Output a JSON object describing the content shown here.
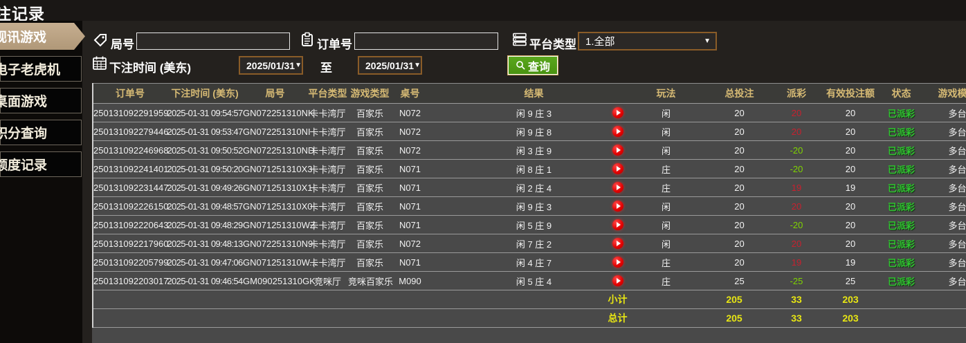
{
  "header": {
    "title": "投注记录"
  },
  "sidebar": {
    "items": [
      {
        "label": "视讯游戏",
        "active": true
      },
      {
        "label": "电子老虎机",
        "active": false
      },
      {
        "label": "桌面游戏",
        "active": false
      },
      {
        "label": "积分查询",
        "active": false
      },
      {
        "label": "额度记录",
        "active": false
      }
    ]
  },
  "filters": {
    "round_label": "局号",
    "round_value": "",
    "order_label": "订单号",
    "order_value": "",
    "platform_label": "平台类型",
    "platform_value": "1.全部",
    "bet_time_label": "下注时间 (美东)",
    "date_from": "2025/01/31",
    "to_label": "至",
    "date_to": "2025/01/31",
    "query_label": "查询"
  },
  "table": {
    "headers": [
      "订单号",
      "下注时间 (美东)",
      "局号",
      "平台类型",
      "游戏类型",
      "桌号",
      "结果",
      "",
      "玩法",
      "总投注",
      "派彩",
      "有效投注额",
      "状态",
      "游戏模式"
    ],
    "rows": [
      {
        "order_no": "250131092291959",
        "bet_time": "2025-01-31 09:54:57",
        "round_no": "GN072251310NK",
        "platform": "卡卡湾厅",
        "game_type": "百家乐",
        "table_no": "N072",
        "result": "闲 9 庄 3",
        "play": "闲",
        "total_bet": "20",
        "payout": "20",
        "valid_bet": "20",
        "status": "已派彩",
        "mode": "多台"
      },
      {
        "order_no": "250131092279446",
        "bet_time": "2025-01-31 09:53:47",
        "round_no": "GN072251310NI",
        "platform": "卡卡湾厅",
        "game_type": "百家乐",
        "table_no": "N072",
        "result": "闲 9 庄 8",
        "play": "闲",
        "total_bet": "20",
        "payout": "20",
        "valid_bet": "20",
        "status": "已派彩",
        "mode": "多台"
      },
      {
        "order_no": "250131092246968",
        "bet_time": "2025-01-31 09:50:52",
        "round_no": "GN072251310ND",
        "platform": "卡卡湾厅",
        "game_type": "百家乐",
        "table_no": "N072",
        "result": "闲 3 庄 9",
        "play": "闲",
        "total_bet": "20",
        "payout": "-20",
        "valid_bet": "20",
        "status": "已派彩",
        "mode": "多台"
      },
      {
        "order_no": "250131092241401",
        "bet_time": "2025-01-31 09:50:20",
        "round_no": "GN071251310X3",
        "platform": "卡卡湾厅",
        "game_type": "百家乐",
        "table_no": "N071",
        "result": "闲 8 庄 1",
        "play": "庄",
        "total_bet": "20",
        "payout": "-20",
        "valid_bet": "20",
        "status": "已派彩",
        "mode": "多台"
      },
      {
        "order_no": "250131092231447",
        "bet_time": "2025-01-31 09:49:26",
        "round_no": "GN071251310X1",
        "platform": "卡卡湾厅",
        "game_type": "百家乐",
        "table_no": "N071",
        "result": "闲 2 庄 4",
        "play": "庄",
        "total_bet": "20",
        "payout": "19",
        "valid_bet": "19",
        "status": "已派彩",
        "mode": "多台"
      },
      {
        "order_no": "250131092226150",
        "bet_time": "2025-01-31 09:48:57",
        "round_no": "GN071251310X0",
        "platform": "卡卡湾厅",
        "game_type": "百家乐",
        "table_no": "N071",
        "result": "闲 9 庄 3",
        "play": "闲",
        "total_bet": "20",
        "payout": "20",
        "valid_bet": "20",
        "status": "已派彩",
        "mode": "多台"
      },
      {
        "order_no": "250131092220643",
        "bet_time": "2025-01-31 09:48:29",
        "round_no": "GN071251310WZ",
        "platform": "卡卡湾厅",
        "game_type": "百家乐",
        "table_no": "N071",
        "result": "闲 5 庄 9",
        "play": "闲",
        "total_bet": "20",
        "payout": "-20",
        "valid_bet": "20",
        "status": "已派彩",
        "mode": "多台"
      },
      {
        "order_no": "250131092217960",
        "bet_time": "2025-01-31 09:48:13",
        "round_no": "GN072251310N9",
        "platform": "卡卡湾厅",
        "game_type": "百家乐",
        "table_no": "N072",
        "result": "闲 7 庄 2",
        "play": "闲",
        "total_bet": "20",
        "payout": "20",
        "valid_bet": "20",
        "status": "已派彩",
        "mode": "多台"
      },
      {
        "order_no": "250131092205799",
        "bet_time": "2025-01-31 09:47:06",
        "round_no": "GN071251310W...",
        "platform": "卡卡湾厅",
        "game_type": "百家乐",
        "table_no": "N071",
        "result": "闲 4 庄 7",
        "play": "庄",
        "total_bet": "20",
        "payout": "19",
        "valid_bet": "19",
        "status": "已派彩",
        "mode": "多台"
      },
      {
        "order_no": "250131092203017",
        "bet_time": "2025-01-31 09:46:54",
        "round_no": "GM090251310GK",
        "platform": "竞咪厅",
        "game_type": "竞咪百家乐",
        "table_no": "M090",
        "result": "闲 5 庄 4",
        "play": "庄",
        "total_bet": "25",
        "payout": "-25",
        "valid_bet": "25",
        "status": "已派彩",
        "mode": "多台"
      }
    ],
    "subtotal": {
      "label": "小计",
      "total_bet": "205",
      "payout": "33",
      "valid_bet": "203"
    },
    "total": {
      "label": "总计",
      "total_bet": "205",
      "payout": "33",
      "valid_bet": "203"
    }
  },
  "colors": {
    "accent_gold": "#d6ba74",
    "tab_active_tan": "#c6ae90",
    "query_green": "#4e9a14",
    "win_red": "#c8202e",
    "loss_green": "#7fd400",
    "status_green": "#2fc42f",
    "total_yellow": "#e8e613",
    "picker_border_brown": "#8a5c28"
  }
}
